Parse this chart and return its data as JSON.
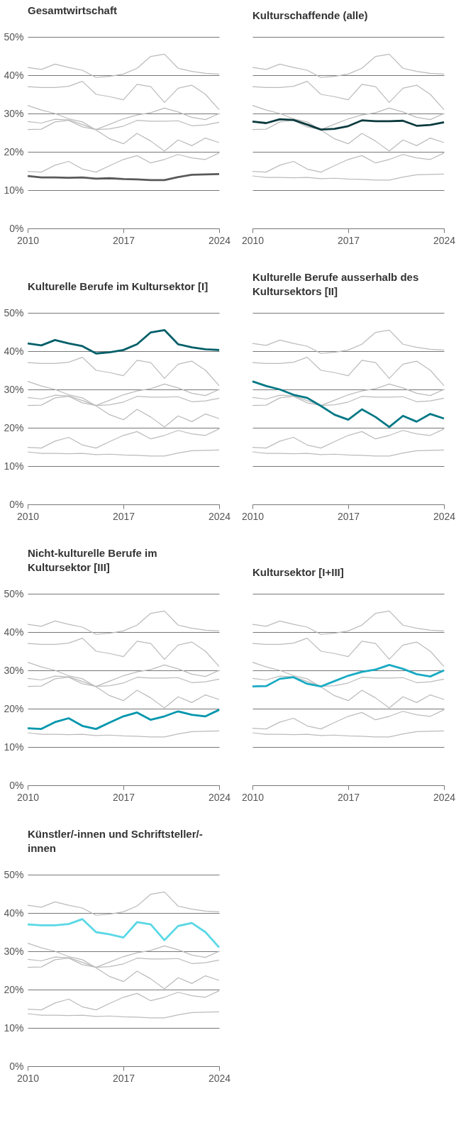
{
  "chart_data": [
    {
      "type": "line",
      "title": "Gesamtwirtschaft",
      "x": [
        2010,
        2011,
        2012,
        2013,
        2014,
        2015,
        2016,
        2017,
        2018,
        2019,
        2020,
        2021,
        2022,
        2023,
        2024
      ],
      "xlim": [
        2010,
        2024
      ],
      "xticks": [
        2010,
        2017,
        2024
      ],
      "ylim": [
        0,
        50
      ],
      "yticks": [
        {
          "value": 0,
          "label": "0%"
        },
        {
          "value": 10,
          "label": "10%"
        },
        {
          "value": 20,
          "label": "20%"
        },
        {
          "value": 30,
          "label": "30%"
        },
        {
          "value": 40,
          "label": "40%"
        },
        {
          "value": 50,
          "label": "50%"
        }
      ],
      "grid": "y",
      "series": [
        {
          "color": "#bbbbbb",
          "values": [
            27.9,
            27.5,
            28.5,
            28.3,
            27.1,
            25.8,
            26.0,
            26.7,
            28.2,
            28.0,
            28.0,
            28.1,
            26.8,
            27.0,
            27.7
          ]
        },
        {
          "color": "#bbbbbb",
          "values": [
            42.0,
            41.5,
            42.9,
            42.0,
            41.3,
            39.4,
            39.7,
            40.3,
            41.8,
            44.9,
            45.5,
            41.8,
            41.0,
            40.5,
            40.3
          ]
        },
        {
          "color": "#bbbbbb",
          "values": [
            32.1,
            30.9,
            30.0,
            28.6,
            27.8,
            25.7,
            23.4,
            22.1,
            24.8,
            22.8,
            20.2,
            23.1,
            21.6,
            23.6,
            22.4
          ]
        },
        {
          "color": "#bbbbbb",
          "values": [
            14.9,
            14.7,
            16.5,
            17.5,
            15.5,
            14.7,
            16.4,
            18.0,
            19.0,
            17.1,
            18.0,
            19.3,
            18.4,
            18.0,
            19.7
          ]
        },
        {
          "color": "#bbbbbb",
          "values": [
            25.8,
            25.9,
            27.8,
            28.2,
            26.5,
            25.8,
            27.2,
            28.6,
            29.6,
            30.2,
            31.4,
            30.4,
            29.0,
            28.4,
            30.0
          ]
        },
        {
          "color": "#bbbbbb",
          "values": [
            37.0,
            36.8,
            36.8,
            37.1,
            38.4,
            35.0,
            34.4,
            33.6,
            37.6,
            37.0,
            32.9,
            36.6,
            37.4,
            35.0,
            31.0
          ]
        },
        {
          "color": "#5a5a5a",
          "values": [
            13.7,
            13.3,
            13.3,
            13.2,
            13.3,
            13.0,
            13.1,
            12.9,
            12.8,
            12.6,
            12.6,
            13.4,
            14.0,
            14.1,
            14.2
          ]
        }
      ]
    },
    {
      "type": "line",
      "title": "Kulturschaffende (alle)",
      "x": [
        2010,
        2011,
        2012,
        2013,
        2014,
        2015,
        2016,
        2017,
        2018,
        2019,
        2020,
        2021,
        2022,
        2023,
        2024
      ],
      "xlim": [
        2010,
        2024
      ],
      "xticks": [
        2010,
        2017,
        2024
      ],
      "ylim": [
        0,
        50
      ],
      "yticks": [
        0,
        10,
        20,
        30,
        40,
        50
      ],
      "grid": "y",
      "tick_labels": "x",
      "series": [
        {
          "color": "#bbbbbb",
          "values": [
            13.7,
            13.3,
            13.3,
            13.2,
            13.3,
            13.0,
            13.1,
            12.9,
            12.8,
            12.6,
            12.6,
            13.4,
            14.0,
            14.1,
            14.2
          ]
        },
        {
          "color": "#bbbbbb",
          "values": [
            42.0,
            41.5,
            42.9,
            42.0,
            41.3,
            39.4,
            39.7,
            40.3,
            41.8,
            44.9,
            45.5,
            41.8,
            41.0,
            40.5,
            40.3
          ]
        },
        {
          "color": "#bbbbbb",
          "values": [
            32.1,
            30.9,
            30.0,
            28.6,
            27.8,
            25.7,
            23.4,
            22.1,
            24.8,
            22.8,
            20.2,
            23.1,
            21.6,
            23.6,
            22.4
          ]
        },
        {
          "color": "#bbbbbb",
          "values": [
            14.9,
            14.7,
            16.5,
            17.5,
            15.5,
            14.7,
            16.4,
            18.0,
            19.0,
            17.1,
            18.0,
            19.3,
            18.4,
            18.0,
            19.7
          ]
        },
        {
          "color": "#bbbbbb",
          "values": [
            25.8,
            25.9,
            27.8,
            28.2,
            26.5,
            25.8,
            27.2,
            28.6,
            29.6,
            30.2,
            31.4,
            30.4,
            29.0,
            28.4,
            30.0
          ]
        },
        {
          "color": "#bbbbbb",
          "values": [
            37.0,
            36.8,
            36.8,
            37.1,
            38.4,
            35.0,
            34.4,
            33.6,
            37.6,
            37.0,
            32.9,
            36.6,
            37.4,
            35.0,
            31.0
          ]
        },
        {
          "color": "#0b3a3e",
          "values": [
            27.9,
            27.5,
            28.5,
            28.3,
            27.1,
            25.8,
            26.0,
            26.7,
            28.2,
            28.0,
            28.0,
            28.1,
            26.8,
            27.0,
            27.7
          ]
        }
      ]
    },
    {
      "type": "line",
      "title": "Kulturelle Berufe im Kultursektor [I]",
      "x": [
        2010,
        2011,
        2012,
        2013,
        2014,
        2015,
        2016,
        2017,
        2018,
        2019,
        2020,
        2021,
        2022,
        2023,
        2024
      ],
      "xlim": [
        2010,
        2024
      ],
      "xticks": [
        2010,
        2017,
        2024
      ],
      "ylim": [
        0,
        50
      ],
      "yticks": [
        {
          "value": 0,
          "label": "0%"
        },
        {
          "value": 10,
          "label": "10%"
        },
        {
          "value": 20,
          "label": "20%"
        },
        {
          "value": 30,
          "label": "30%"
        },
        {
          "value": 40,
          "label": "40%"
        },
        {
          "value": 50,
          "label": "50%"
        }
      ],
      "grid": "y",
      "series": [
        {
          "color": "#bbbbbb",
          "values": [
            13.7,
            13.3,
            13.3,
            13.2,
            13.3,
            13.0,
            13.1,
            12.9,
            12.8,
            12.6,
            12.6,
            13.4,
            14.0,
            14.1,
            14.2
          ]
        },
        {
          "color": "#bbbbbb",
          "values": [
            27.9,
            27.5,
            28.5,
            28.3,
            27.1,
            25.8,
            26.0,
            26.7,
            28.2,
            28.0,
            28.0,
            28.1,
            26.8,
            27.0,
            27.7
          ]
        },
        {
          "color": "#bbbbbb",
          "values": [
            32.1,
            30.9,
            30.0,
            28.6,
            27.8,
            25.7,
            23.4,
            22.1,
            24.8,
            22.8,
            20.2,
            23.1,
            21.6,
            23.6,
            22.4
          ]
        },
        {
          "color": "#bbbbbb",
          "values": [
            14.9,
            14.7,
            16.5,
            17.5,
            15.5,
            14.7,
            16.4,
            18.0,
            19.0,
            17.1,
            18.0,
            19.3,
            18.4,
            18.0,
            19.7
          ]
        },
        {
          "color": "#bbbbbb",
          "values": [
            25.8,
            25.9,
            27.8,
            28.2,
            26.5,
            25.8,
            27.2,
            28.6,
            29.6,
            30.2,
            31.4,
            30.4,
            29.0,
            28.4,
            30.0
          ]
        },
        {
          "color": "#bbbbbb",
          "values": [
            37.0,
            36.8,
            36.8,
            37.1,
            38.4,
            35.0,
            34.4,
            33.6,
            37.6,
            37.0,
            32.9,
            36.6,
            37.4,
            35.0,
            31.0
          ]
        },
        {
          "color": "#005f69",
          "values": [
            42.0,
            41.5,
            42.9,
            42.0,
            41.3,
            39.4,
            39.7,
            40.3,
            41.8,
            44.9,
            45.5,
            41.8,
            41.0,
            40.5,
            40.3
          ]
        }
      ]
    },
    {
      "type": "line",
      "title": "Kulturelle Berufe ausserhalb des Kultursektors [II]",
      "x": [
        2010,
        2011,
        2012,
        2013,
        2014,
        2015,
        2016,
        2017,
        2018,
        2019,
        2020,
        2021,
        2022,
        2023,
        2024
      ],
      "xlim": [
        2010,
        2024
      ],
      "xticks": [
        2010,
        2017,
        2024
      ],
      "ylim": [
        0,
        50
      ],
      "yticks": [
        0,
        10,
        20,
        30,
        40,
        50
      ],
      "grid": "y",
      "tick_labels": "x",
      "series": [
        {
          "color": "#bbbbbb",
          "values": [
            13.7,
            13.3,
            13.3,
            13.2,
            13.3,
            13.0,
            13.1,
            12.9,
            12.8,
            12.6,
            12.6,
            13.4,
            14.0,
            14.1,
            14.2
          ]
        },
        {
          "color": "#bbbbbb",
          "values": [
            27.9,
            27.5,
            28.5,
            28.3,
            27.1,
            25.8,
            26.0,
            26.7,
            28.2,
            28.0,
            28.0,
            28.1,
            26.8,
            27.0,
            27.7
          ]
        },
        {
          "color": "#bbbbbb",
          "values": [
            42.0,
            41.5,
            42.9,
            42.0,
            41.3,
            39.4,
            39.7,
            40.3,
            41.8,
            44.9,
            45.5,
            41.8,
            41.0,
            40.5,
            40.3
          ]
        },
        {
          "color": "#bbbbbb",
          "values": [
            14.9,
            14.7,
            16.5,
            17.5,
            15.5,
            14.7,
            16.4,
            18.0,
            19.0,
            17.1,
            18.0,
            19.3,
            18.4,
            18.0,
            19.7
          ]
        },
        {
          "color": "#bbbbbb",
          "values": [
            25.8,
            25.9,
            27.8,
            28.2,
            26.5,
            25.8,
            27.2,
            28.6,
            29.6,
            30.2,
            31.4,
            30.4,
            29.0,
            28.4,
            30.0
          ]
        },
        {
          "color": "#bbbbbb",
          "values": [
            37.0,
            36.8,
            36.8,
            37.1,
            38.4,
            35.0,
            34.4,
            33.6,
            37.6,
            37.0,
            32.9,
            36.6,
            37.4,
            35.0,
            31.0
          ]
        },
        {
          "color": "#007885",
          "values": [
            32.1,
            30.9,
            30.0,
            28.6,
            27.8,
            25.7,
            23.4,
            22.1,
            24.8,
            22.8,
            20.2,
            23.1,
            21.6,
            23.6,
            22.4
          ]
        }
      ]
    },
    {
      "type": "line",
      "title": "Nicht-kulturelle Berufe im Kultursektor [III]",
      "x": [
        2010,
        2011,
        2012,
        2013,
        2014,
        2015,
        2016,
        2017,
        2018,
        2019,
        2020,
        2021,
        2022,
        2023,
        2024
      ],
      "xlim": [
        2010,
        2024
      ],
      "xticks": [
        2010,
        2017,
        2024
      ],
      "ylim": [
        0,
        50
      ],
      "yticks": [
        {
          "value": 0,
          "label": "0%"
        },
        {
          "value": 10,
          "label": "10%"
        },
        {
          "value": 20,
          "label": "20%"
        },
        {
          "value": 30,
          "label": "30%"
        },
        {
          "value": 40,
          "label": "40%"
        },
        {
          "value": 50,
          "label": "50%"
        }
      ],
      "grid": "y",
      "series": [
        {
          "color": "#bbbbbb",
          "values": [
            13.7,
            13.3,
            13.3,
            13.2,
            13.3,
            13.0,
            13.1,
            12.9,
            12.8,
            12.6,
            12.6,
            13.4,
            14.0,
            14.1,
            14.2
          ]
        },
        {
          "color": "#bbbbbb",
          "values": [
            27.9,
            27.5,
            28.5,
            28.3,
            27.1,
            25.8,
            26.0,
            26.7,
            28.2,
            28.0,
            28.0,
            28.1,
            26.8,
            27.0,
            27.7
          ]
        },
        {
          "color": "#bbbbbb",
          "values": [
            42.0,
            41.5,
            42.9,
            42.0,
            41.3,
            39.4,
            39.7,
            40.3,
            41.8,
            44.9,
            45.5,
            41.8,
            41.0,
            40.5,
            40.3
          ]
        },
        {
          "color": "#bbbbbb",
          "values": [
            32.1,
            30.9,
            30.0,
            28.6,
            27.8,
            25.7,
            23.4,
            22.1,
            24.8,
            22.8,
            20.2,
            23.1,
            21.6,
            23.6,
            22.4
          ]
        },
        {
          "color": "#bbbbbb",
          "values": [
            25.8,
            25.9,
            27.8,
            28.2,
            26.5,
            25.8,
            27.2,
            28.6,
            29.6,
            30.2,
            31.4,
            30.4,
            29.0,
            28.4,
            30.0
          ]
        },
        {
          "color": "#bbbbbb",
          "values": [
            37.0,
            36.8,
            36.8,
            37.1,
            38.4,
            35.0,
            34.4,
            33.6,
            37.6,
            37.0,
            32.9,
            36.6,
            37.4,
            35.0,
            31.0
          ]
        },
        {
          "color": "#0096ad",
          "values": [
            14.9,
            14.7,
            16.5,
            17.5,
            15.5,
            14.7,
            16.4,
            18.0,
            19.0,
            17.1,
            18.0,
            19.3,
            18.4,
            18.0,
            19.7
          ]
        }
      ]
    },
    {
      "type": "line",
      "title": "Kultursektor [I+III]",
      "x": [
        2010,
        2011,
        2012,
        2013,
        2014,
        2015,
        2016,
        2017,
        2018,
        2019,
        2020,
        2021,
        2022,
        2023,
        2024
      ],
      "xlim": [
        2010,
        2024
      ],
      "xticks": [
        2010,
        2017,
        2024
      ],
      "ylim": [
        0,
        50
      ],
      "yticks": [
        0,
        10,
        20,
        30,
        40,
        50
      ],
      "grid": "y",
      "tick_labels": "x",
      "series": [
        {
          "color": "#bbbbbb",
          "values": [
            13.7,
            13.3,
            13.3,
            13.2,
            13.3,
            13.0,
            13.1,
            12.9,
            12.8,
            12.6,
            12.6,
            13.4,
            14.0,
            14.1,
            14.2
          ]
        },
        {
          "color": "#bbbbbb",
          "values": [
            27.9,
            27.5,
            28.5,
            28.3,
            27.1,
            25.8,
            26.0,
            26.7,
            28.2,
            28.0,
            28.0,
            28.1,
            26.8,
            27.0,
            27.7
          ]
        },
        {
          "color": "#bbbbbb",
          "values": [
            42.0,
            41.5,
            42.9,
            42.0,
            41.3,
            39.4,
            39.7,
            40.3,
            41.8,
            44.9,
            45.5,
            41.8,
            41.0,
            40.5,
            40.3
          ]
        },
        {
          "color": "#bbbbbb",
          "values": [
            32.1,
            30.9,
            30.0,
            28.6,
            27.8,
            25.7,
            23.4,
            22.1,
            24.8,
            22.8,
            20.2,
            23.1,
            21.6,
            23.6,
            22.4
          ]
        },
        {
          "color": "#bbbbbb",
          "values": [
            14.9,
            14.7,
            16.5,
            17.5,
            15.5,
            14.7,
            16.4,
            18.0,
            19.0,
            17.1,
            18.0,
            19.3,
            18.4,
            18.0,
            19.7
          ]
        },
        {
          "color": "#bbbbbb",
          "values": [
            37.0,
            36.8,
            36.8,
            37.1,
            38.4,
            35.0,
            34.4,
            33.6,
            37.6,
            37.0,
            32.9,
            36.6,
            37.4,
            35.0,
            31.0
          ]
        },
        {
          "color": "#1aabc3",
          "values": [
            25.8,
            25.9,
            27.8,
            28.2,
            26.5,
            25.8,
            27.2,
            28.6,
            29.6,
            30.2,
            31.4,
            30.4,
            29.0,
            28.4,
            30.0
          ]
        }
      ]
    },
    {
      "type": "line",
      "title": "Künstler/-innen und Schriftsteller/-innen",
      "x": [
        2010,
        2011,
        2012,
        2013,
        2014,
        2015,
        2016,
        2017,
        2018,
        2019,
        2020,
        2021,
        2022,
        2023,
        2024
      ],
      "xlim": [
        2010,
        2024
      ],
      "xticks": [
        2010,
        2017,
        2024
      ],
      "ylim": [
        0,
        50
      ],
      "yticks": [
        {
          "value": 0,
          "label": "0%"
        },
        {
          "value": 10,
          "label": "10%"
        },
        {
          "value": 20,
          "label": "20%"
        },
        {
          "value": 30,
          "label": "30%"
        },
        {
          "value": 40,
          "label": "40%"
        },
        {
          "value": 50,
          "label": "50%"
        }
      ],
      "grid": "y",
      "series": [
        {
          "color": "#bbbbbb",
          "values": [
            13.7,
            13.3,
            13.3,
            13.2,
            13.3,
            13.0,
            13.1,
            12.9,
            12.8,
            12.6,
            12.6,
            13.4,
            14.0,
            14.1,
            14.2
          ]
        },
        {
          "color": "#bbbbbb",
          "values": [
            27.9,
            27.5,
            28.5,
            28.3,
            27.1,
            25.8,
            26.0,
            26.7,
            28.2,
            28.0,
            28.0,
            28.1,
            26.8,
            27.0,
            27.7
          ]
        },
        {
          "color": "#bbbbbb",
          "values": [
            42.0,
            41.5,
            42.9,
            42.0,
            41.3,
            39.4,
            39.7,
            40.3,
            41.8,
            44.9,
            45.5,
            41.8,
            41.0,
            40.5,
            40.3
          ]
        },
        {
          "color": "#bbbbbb",
          "values": [
            32.1,
            30.9,
            30.0,
            28.6,
            27.8,
            25.7,
            23.4,
            22.1,
            24.8,
            22.8,
            20.2,
            23.1,
            21.6,
            23.6,
            22.4
          ]
        },
        {
          "color": "#bbbbbb",
          "values": [
            14.9,
            14.7,
            16.5,
            17.5,
            15.5,
            14.7,
            16.4,
            18.0,
            19.0,
            17.1,
            18.0,
            19.3,
            18.4,
            18.0,
            19.7
          ]
        },
        {
          "color": "#bbbbbb",
          "values": [
            25.8,
            25.9,
            27.8,
            28.2,
            26.5,
            25.8,
            27.2,
            28.6,
            29.6,
            30.2,
            31.4,
            30.4,
            29.0,
            28.4,
            30.0
          ]
        },
        {
          "color": "#5ad8e6",
          "values": [
            37.0,
            36.8,
            36.8,
            37.1,
            38.4,
            35.0,
            34.4,
            33.6,
            37.6,
            37.0,
            32.9,
            36.6,
            37.4,
            35.0,
            31.0
          ]
        }
      ]
    }
  ]
}
